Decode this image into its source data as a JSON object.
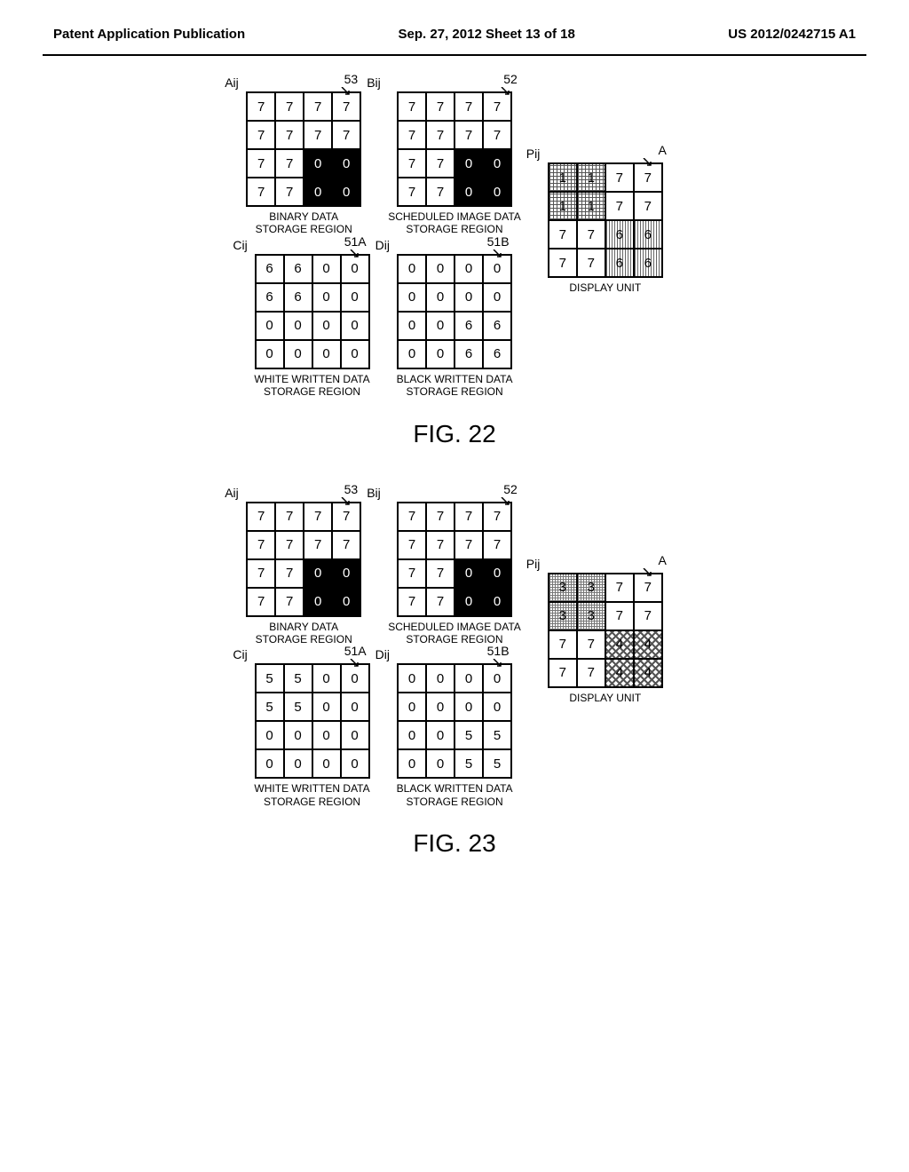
{
  "header": {
    "left": "Patent Application Publication",
    "center": "Sep. 27, 2012  Sheet 13 of 18",
    "right": "US 2012/0242715 A1"
  },
  "captions": {
    "binary": "BINARY DATA\nSTORAGE REGION",
    "scheduled": "SCHEDULED IMAGE DATA\nSTORAGE REGION",
    "white": "WHITE WRITTEN DATA\nSTORAGE REGION",
    "black": "BLACK WRITTEN DATA\nSTORAGE REGION",
    "display": "DISPLAY UNIT"
  },
  "labels": {
    "Aij": "Aij",
    "Bij": "Bij",
    "Cij": "Cij",
    "Dij": "Dij",
    "Pij": "Pij",
    "A": "A",
    "r53": "53",
    "r52": "52",
    "r51A": "51A",
    "r51B": "51B"
  },
  "fig22": {
    "title": "FIG. 22",
    "A": {
      "rows": [
        [
          "7",
          "7",
          "7",
          "7"
        ],
        [
          "7",
          "7",
          "7",
          "7"
        ],
        [
          "7",
          "7",
          "0",
          "0"
        ],
        [
          "7",
          "7",
          "0",
          "0"
        ]
      ],
      "black": [
        [
          0,
          0,
          0,
          0
        ],
        [
          0,
          0,
          0,
          0
        ],
        [
          0,
          0,
          1,
          1
        ],
        [
          0,
          0,
          1,
          1
        ]
      ]
    },
    "B": {
      "rows": [
        [
          "7",
          "7",
          "7",
          "7"
        ],
        [
          "7",
          "7",
          "7",
          "7"
        ],
        [
          "7",
          "7",
          "0",
          "0"
        ],
        [
          "7",
          "7",
          "0",
          "0"
        ]
      ],
      "black": [
        [
          0,
          0,
          0,
          0
        ],
        [
          0,
          0,
          0,
          0
        ],
        [
          0,
          0,
          1,
          1
        ],
        [
          0,
          0,
          1,
          1
        ]
      ]
    },
    "C": {
      "rows": [
        [
          "6",
          "6",
          "0",
          "0"
        ],
        [
          "6",
          "6",
          "0",
          "0"
        ],
        [
          "0",
          "0",
          "0",
          "0"
        ],
        [
          "0",
          "0",
          "0",
          "0"
        ]
      ]
    },
    "D": {
      "rows": [
        [
          "0",
          "0",
          "0",
          "0"
        ],
        [
          "0",
          "0",
          "0",
          "0"
        ],
        [
          "0",
          "0",
          "6",
          "6"
        ],
        [
          "0",
          "0",
          "6",
          "6"
        ]
      ]
    },
    "P": {
      "rows": [
        [
          "1",
          "1",
          "7",
          "7"
        ],
        [
          "1",
          "1",
          "7",
          "7"
        ],
        [
          "7",
          "7",
          "6",
          "6"
        ],
        [
          "7",
          "7",
          "6",
          "6"
        ]
      ],
      "style": [
        [
          "a",
          "a",
          "",
          ""
        ],
        [
          "a",
          "a",
          "",
          ""
        ],
        [
          "",
          "",
          "b",
          "b"
        ],
        [
          "",
          "",
          "b",
          "b"
        ]
      ]
    }
  },
  "fig23": {
    "title": "FIG. 23",
    "A": {
      "rows": [
        [
          "7",
          "7",
          "7",
          "7"
        ],
        [
          "7",
          "7",
          "7",
          "7"
        ],
        [
          "7",
          "7",
          "0",
          "0"
        ],
        [
          "7",
          "7",
          "0",
          "0"
        ]
      ],
      "black": [
        [
          0,
          0,
          0,
          0
        ],
        [
          0,
          0,
          0,
          0
        ],
        [
          0,
          0,
          1,
          1
        ],
        [
          0,
          0,
          1,
          1
        ]
      ]
    },
    "B": {
      "rows": [
        [
          "7",
          "7",
          "7",
          "7"
        ],
        [
          "7",
          "7",
          "7",
          "7"
        ],
        [
          "7",
          "7",
          "0",
          "0"
        ],
        [
          "7",
          "7",
          "0",
          "0"
        ]
      ],
      "black": [
        [
          0,
          0,
          0,
          0
        ],
        [
          0,
          0,
          0,
          0
        ],
        [
          0,
          0,
          1,
          1
        ],
        [
          0,
          0,
          1,
          1
        ]
      ]
    },
    "C": {
      "rows": [
        [
          "5",
          "5",
          "0",
          "0"
        ],
        [
          "5",
          "5",
          "0",
          "0"
        ],
        [
          "0",
          "0",
          "0",
          "0"
        ],
        [
          "0",
          "0",
          "0",
          "0"
        ]
      ]
    },
    "D": {
      "rows": [
        [
          "0",
          "0",
          "0",
          "0"
        ],
        [
          "0",
          "0",
          "0",
          "0"
        ],
        [
          "0",
          "0",
          "5",
          "5"
        ],
        [
          "0",
          "0",
          "5",
          "5"
        ]
      ]
    },
    "P": {
      "rows": [
        [
          "3",
          "3",
          "7",
          "7"
        ],
        [
          "3",
          "3",
          "7",
          "7"
        ],
        [
          "7",
          "7",
          "4",
          "4"
        ],
        [
          "7",
          "7",
          "4",
          "4"
        ]
      ],
      "style": [
        [
          "c",
          "c",
          "",
          ""
        ],
        [
          "c",
          "c",
          "",
          ""
        ],
        [
          "",
          "",
          "d",
          "d"
        ],
        [
          "",
          "",
          "d",
          "d"
        ]
      ]
    }
  }
}
